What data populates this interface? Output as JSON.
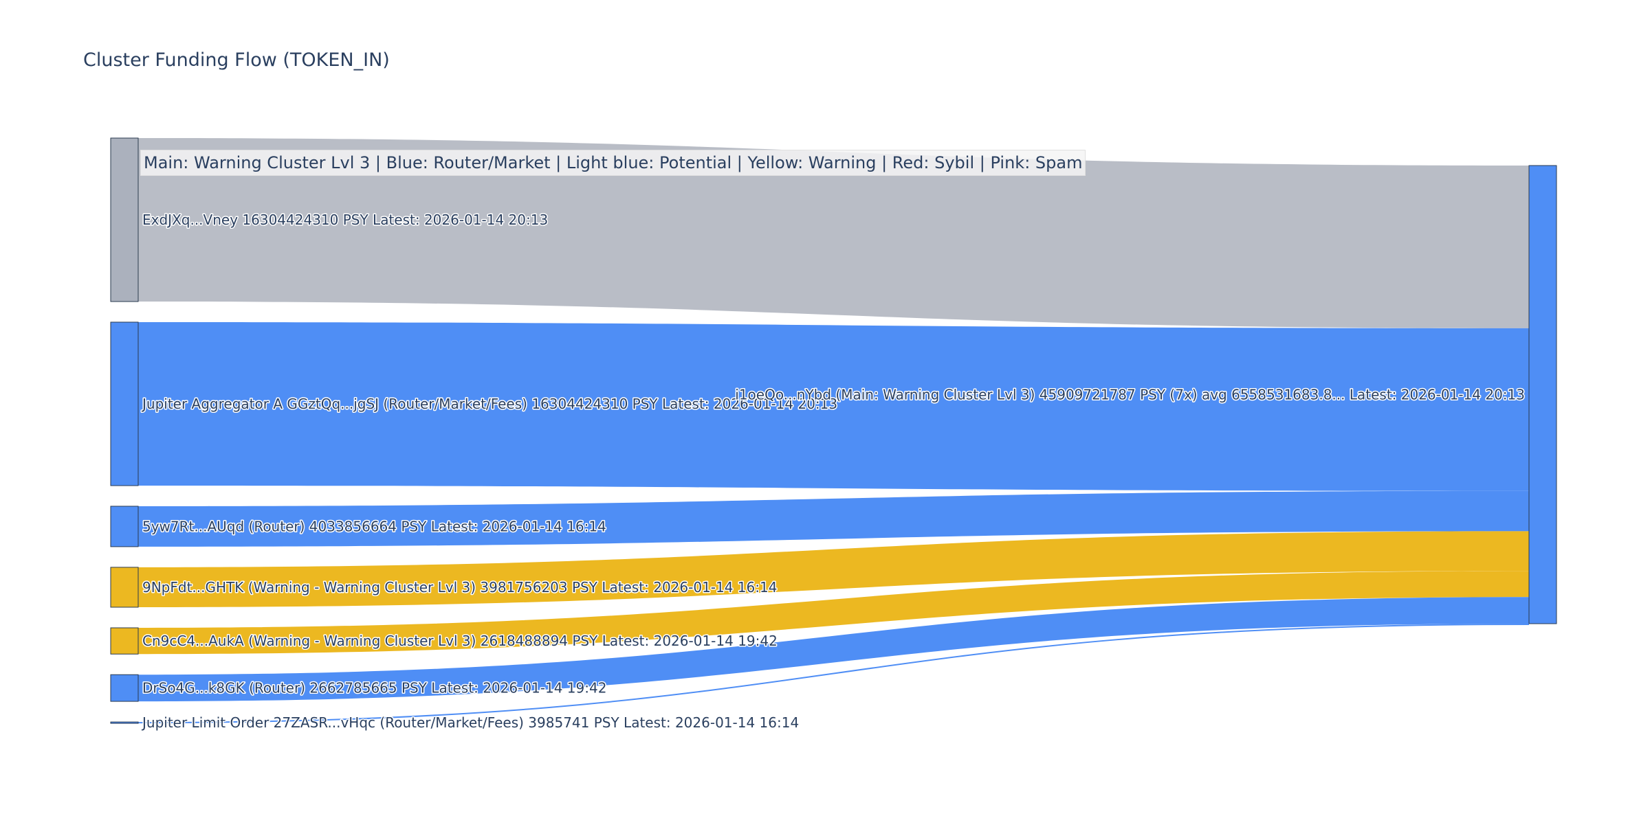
{
  "title": "Cluster Funding Flow (TOKEN_IN)",
  "legend": "Main: Warning Cluster Lvl 3  |  Blue: Router/Market | Light blue: Potential | Yellow: Warning | Red: Sybil | Pink: Spam",
  "colors": {
    "gray_node": "#abb1bd",
    "gray_link": "#b9bdc6",
    "blue": "#4f8ef5",
    "yellow": "#ecb821",
    "node_border": "#2a3a4f"
  },
  "chart_data": {
    "type": "sankey",
    "title": "Cluster Funding Flow (TOKEN_IN)",
    "unit": "PSY",
    "target": {
      "label": "i1oeQo...nYbd (Main: Warning Cluster Lvl 3) 45909721787 PSY (7x) avg 6558531683.8... Latest: 2026-01-14 20:13",
      "value": 45909721787,
      "color": "blue"
    },
    "sources": [
      {
        "label": "ExdJXq...Vney 16304424310 PSY Latest: 2026-01-14 20:13",
        "value": 16304424310,
        "color": "gray"
      },
      {
        "label": "Jupiter Aggregator A GGztQq...jgSJ (Router/Market/Fees) 16304424310 PSY Latest: 2026-01-14 20:13",
        "value": 16304424310,
        "color": "blue"
      },
      {
        "label": "5yw7Rt...AUqd (Router) 4033856664 PSY Latest: 2026-01-14 16:14",
        "value": 4033856664,
        "color": "blue"
      },
      {
        "label": "9NpFdt...GHTK (Warning - Warning Cluster Lvl 3) 3981756203 PSY Latest: 2026-01-14 16:14",
        "value": 3981756203,
        "color": "yellow"
      },
      {
        "label": "Cn9cC4...AukA (Warning - Warning Cluster Lvl 3) 2618488894 PSY Latest: 2026-01-14 19:42",
        "value": 2618488894,
        "color": "yellow"
      },
      {
        "label": "DrSo4G...k8GK (Router) 2662785665 PSY Latest: 2026-01-14 19:42",
        "value": 2662785665,
        "color": "blue"
      },
      {
        "label": "Jupiter Limit Order  27ZASR...vHqc (Router/Market/Fees) 3985741 PSY Latest: 2026-01-14 16:14",
        "value": 3985741,
        "color": "blue"
      }
    ]
  }
}
